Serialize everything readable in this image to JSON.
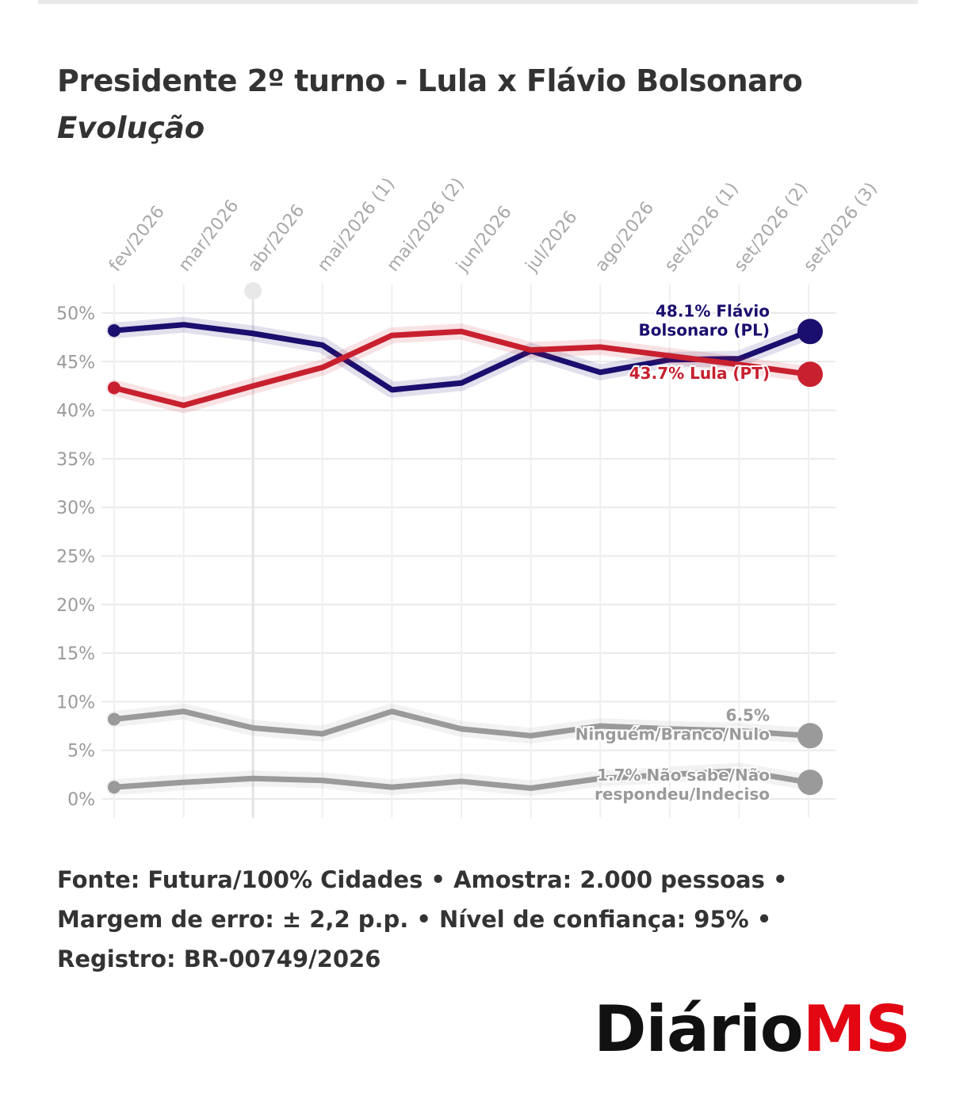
{
  "header": {
    "title": "Presidente 2º turno - Lula x Flávio Bolsonaro",
    "subtitle": "Evolução"
  },
  "footer": {
    "source": "Fonte: Futura/100% Cidades • Amostra: 2.000 pessoas • Margem de erro: ± 2,2 p.p. • Nível de confiança: 95% • Registro: BR-00749/2026"
  },
  "logo": {
    "part1": "Diário",
    "part2": "MS",
    "color1": "#111111",
    "color2": "#e30613"
  },
  "chart_data": {
    "type": "line",
    "x": [
      "fev/2026",
      "mar/2026",
      "abr/2026",
      "mai/2026 (1)",
      "mai/2026 (2)",
      "jun/2026",
      "jul/2026",
      "ago/2026",
      "set/2026 (1)",
      "set/2026 (2)",
      "set/2026 (3)"
    ],
    "ylim": [
      0,
      50
    ],
    "yticks": [
      0,
      5,
      10,
      15,
      20,
      25,
      30,
      35,
      40,
      45,
      50
    ],
    "ytick_labels": [
      "0%",
      "5%",
      "10%",
      "15%",
      "20%",
      "25%",
      "30%",
      "35%",
      "40%",
      "45%",
      "50%"
    ],
    "highlight_x": "abr/2026",
    "grid": true,
    "series": [
      {
        "key": "bolsonaro",
        "label_lines": [
          "48.1% Flávio",
          "Bolsonaro (PL)"
        ],
        "color": "#1a0e6e",
        "values": [
          48.2,
          48.8,
          47.9,
          46.7,
          42.1,
          42.8,
          46.1,
          43.9,
          45.2,
          45.3,
          48.1
        ]
      },
      {
        "key": "lula",
        "label_lines": [
          "43.7% Lula (PT)"
        ],
        "color": "#c8202f",
        "values": [
          42.3,
          40.5,
          42.5,
          44.4,
          47.7,
          48.1,
          46.2,
          46.5,
          45.6,
          44.7,
          43.7
        ]
      },
      {
        "key": "ninguem",
        "label_lines": [
          "6.5%",
          "Ninguém/Branco/Nulo"
        ],
        "color": "#9a9a9a",
        "values": [
          8.2,
          9.0,
          7.3,
          6.7,
          9.0,
          7.2,
          6.5,
          7.5,
          7.2,
          7.0,
          6.5
        ]
      },
      {
        "key": "nao_sabe",
        "label_lines": [
          "1.7% Não sabe/Não",
          "respondeu/Indeciso"
        ],
        "color": "#9a9a9a",
        "values": [
          1.2,
          1.7,
          2.1,
          1.9,
          1.2,
          1.8,
          1.1,
          2.1,
          2.5,
          2.9,
          1.7
        ]
      }
    ]
  }
}
